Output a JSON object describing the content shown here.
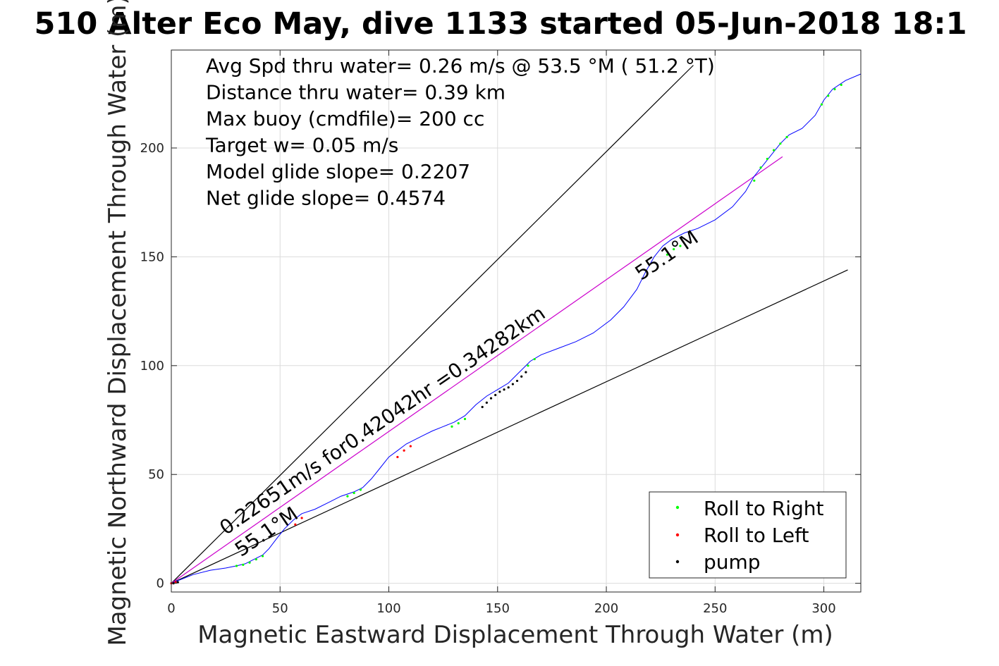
{
  "chart_data": {
    "type": "line",
    "title": "510 Alter Eco May, dive 1133 started 05-Jun-2018 18:1",
    "xlabel": "Magnetic Eastward Displacement Through Water (m)",
    "ylabel": "Magnetic Northward Displacement Through Water (m)",
    "xlim": [
      0,
      317
    ],
    "ylim": [
      -4,
      245
    ],
    "xticks": [
      0,
      50,
      100,
      150,
      200,
      250,
      300
    ],
    "yticks": [
      0,
      50,
      100,
      150,
      200
    ],
    "grid": true,
    "legend_position": "bottom-right",
    "info_lines": [
      "Avg Spd thru water=  0.26 m/s @  53.5 °M ( 51.2 °T)",
      "Distance thru water=  0.39 km",
      "Max buoy (cmdfile)= 200 cc",
      "Target w= 0.05 m/s",
      "Model glide slope= 0.2207",
      "Net glide slope= 0.4574"
    ],
    "annotations": [
      {
        "text": "0.22651m/s for0.42042hr =0.34282km",
        "x": 25,
        "y": 22,
        "angle": 34.3
      },
      {
        "text": "55.1°M",
        "x": 32,
        "y": 12,
        "angle": 34.3
      },
      {
        "text": "55.1°M",
        "x": 216,
        "y": 139,
        "angle": 34.3
      }
    ],
    "reference_lines": [
      {
        "name": "upper-bound",
        "x": [
          0,
          240
        ],
        "y": [
          0,
          238
        ],
        "color": "#000000"
      },
      {
        "name": "lower-bound",
        "x": [
          0,
          311
        ],
        "y": [
          0,
          144
        ],
        "color": "#000000"
      },
      {
        "name": "net-heading",
        "x": [
          0,
          281
        ],
        "y": [
          0,
          196
        ],
        "color": "#cc00cc"
      }
    ],
    "track": {
      "color": "#0000ff",
      "x": [
        0,
        5,
        10,
        18,
        25,
        30,
        34,
        38,
        42,
        45,
        48,
        52,
        56,
        60,
        66,
        72,
        78,
        84,
        88,
        92,
        96,
        100,
        104,
        108,
        112,
        116,
        120,
        125,
        130,
        135,
        140,
        145,
        150,
        155,
        160,
        165,
        170,
        178,
        186,
        194,
        202,
        208,
        214,
        218,
        222,
        226,
        230,
        236,
        242,
        250,
        258,
        264,
        268,
        272,
        276,
        280,
        284,
        290,
        296,
        300,
        304,
        310,
        317
      ],
      "y": [
        0,
        2,
        4,
        6,
        7,
        8,
        9,
        11,
        13,
        16,
        20,
        25,
        29,
        32,
        34,
        37,
        40,
        42,
        44,
        48,
        53,
        58,
        61,
        64,
        66,
        68,
        70,
        72,
        74,
        77,
        82,
        86,
        89,
        92,
        97,
        102,
        105,
        108,
        111,
        115,
        121,
        127,
        135,
        143,
        150,
        155,
        158,
        161,
        163,
        167,
        173,
        180,
        187,
        192,
        197,
        202,
        206,
        209,
        215,
        222,
        227,
        231,
        234
      ]
    },
    "series": [
      {
        "name": "Roll to Right",
        "color": "#00ff00",
        "x": [
          30,
          33,
          36,
          39,
          42,
          81,
          84,
          87,
          129,
          132,
          135,
          164,
          167,
          228,
          231,
          234,
          268,
          271,
          274,
          277,
          280,
          283,
          299,
          302,
          305,
          308
        ],
        "y": [
          8,
          8.5,
          9.5,
          11,
          12.5,
          40,
          41.5,
          43,
          72,
          73.5,
          75.5,
          100,
          103,
          151,
          153.5,
          155,
          185,
          191,
          195,
          199,
          202,
          205,
          220,
          224,
          227,
          229
        ]
      },
      {
        "name": "Roll to Left",
        "color": "#ff0000",
        "x": [
          0,
          2,
          57,
          60,
          104,
          107,
          110
        ],
        "y": [
          0,
          0.5,
          27,
          30,
          58,
          61,
          63
        ]
      },
      {
        "name": "pump",
        "color": "#000000",
        "x": [
          1,
          3,
          143,
          145,
          147,
          149,
          151,
          153,
          155,
          157,
          159,
          161,
          163
        ],
        "y": [
          0,
          0.5,
          81,
          83,
          85,
          86.5,
          88,
          89,
          90,
          91.5,
          93,
          95,
          97
        ]
      }
    ]
  }
}
